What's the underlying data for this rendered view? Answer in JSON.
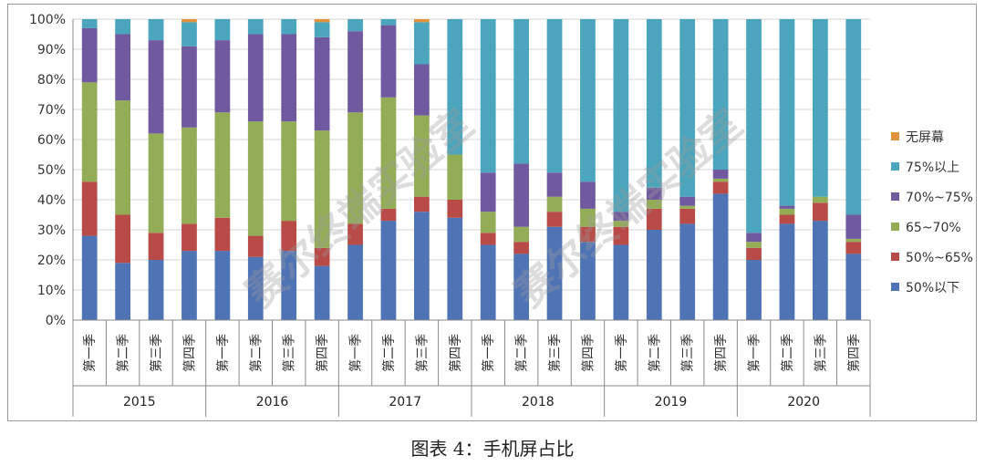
{
  "caption": "图表 4：手机屏占比",
  "watermark": "赛尔终端实验室",
  "chart_data": {
    "type": "bar",
    "stacked": true,
    "percent": true,
    "ylim": [
      0,
      100
    ],
    "yticks": [
      "0%",
      "10%",
      "20%",
      "30%",
      "40%",
      "50%",
      "60%",
      "70%",
      "80%",
      "90%",
      "100%"
    ],
    "grid": true,
    "legend_position": "right",
    "years": [
      "2015",
      "2016",
      "2017",
      "2018",
      "2019",
      "2020"
    ],
    "quarters": [
      "第一季",
      "第二季",
      "第三季",
      "第四季"
    ],
    "series": [
      {
        "name": "50%以下",
        "color": "#4f74b5",
        "values": [
          28,
          19,
          20,
          23,
          23,
          21,
          23,
          18,
          25,
          33,
          36,
          34,
          25,
          22,
          31,
          26,
          25,
          30,
          32,
          42,
          20,
          32,
          33,
          22
        ]
      },
      {
        "name": "50%~65%",
        "color": "#b84b47",
        "values": [
          18,
          16,
          9,
          9,
          11,
          7,
          10,
          6,
          7,
          4,
          5,
          6,
          4,
          4,
          5,
          5,
          6,
          7,
          5,
          4,
          4,
          3,
          6,
          4
        ]
      },
      {
        "name": "65~70%",
        "color": "#93ad57",
        "values": [
          33,
          38,
          33,
          32,
          35,
          38,
          33,
          39,
          37,
          37,
          27,
          15,
          7,
          5,
          5,
          6,
          2,
          3,
          1,
          1,
          2,
          2,
          2,
          1
        ]
      },
      {
        "name": "70%~75%",
        "color": "#7159a0",
        "values": [
          18,
          22,
          31,
          27,
          24,
          29,
          29,
          31,
          27,
          24,
          17,
          0,
          13,
          21,
          8,
          9,
          3,
          4,
          3,
          3,
          3,
          1,
          0,
          8
        ]
      },
      {
        "name": "75%以上",
        "color": "#4aa5bd",
        "values": [
          3,
          5,
          7,
          8,
          7,
          5,
          5,
          5,
          4,
          2,
          14,
          45,
          51,
          48,
          51,
          54,
          64,
          56,
          59,
          50,
          71,
          62,
          59,
          65
        ]
      },
      {
        "name": "无屏幕",
        "color": "#e2913c",
        "values": [
          0,
          0,
          0,
          1,
          0,
          0,
          0,
          1,
          0,
          0,
          1,
          0,
          0,
          0,
          0,
          0,
          0,
          0,
          0,
          0,
          0,
          0,
          0,
          0
        ]
      }
    ]
  }
}
